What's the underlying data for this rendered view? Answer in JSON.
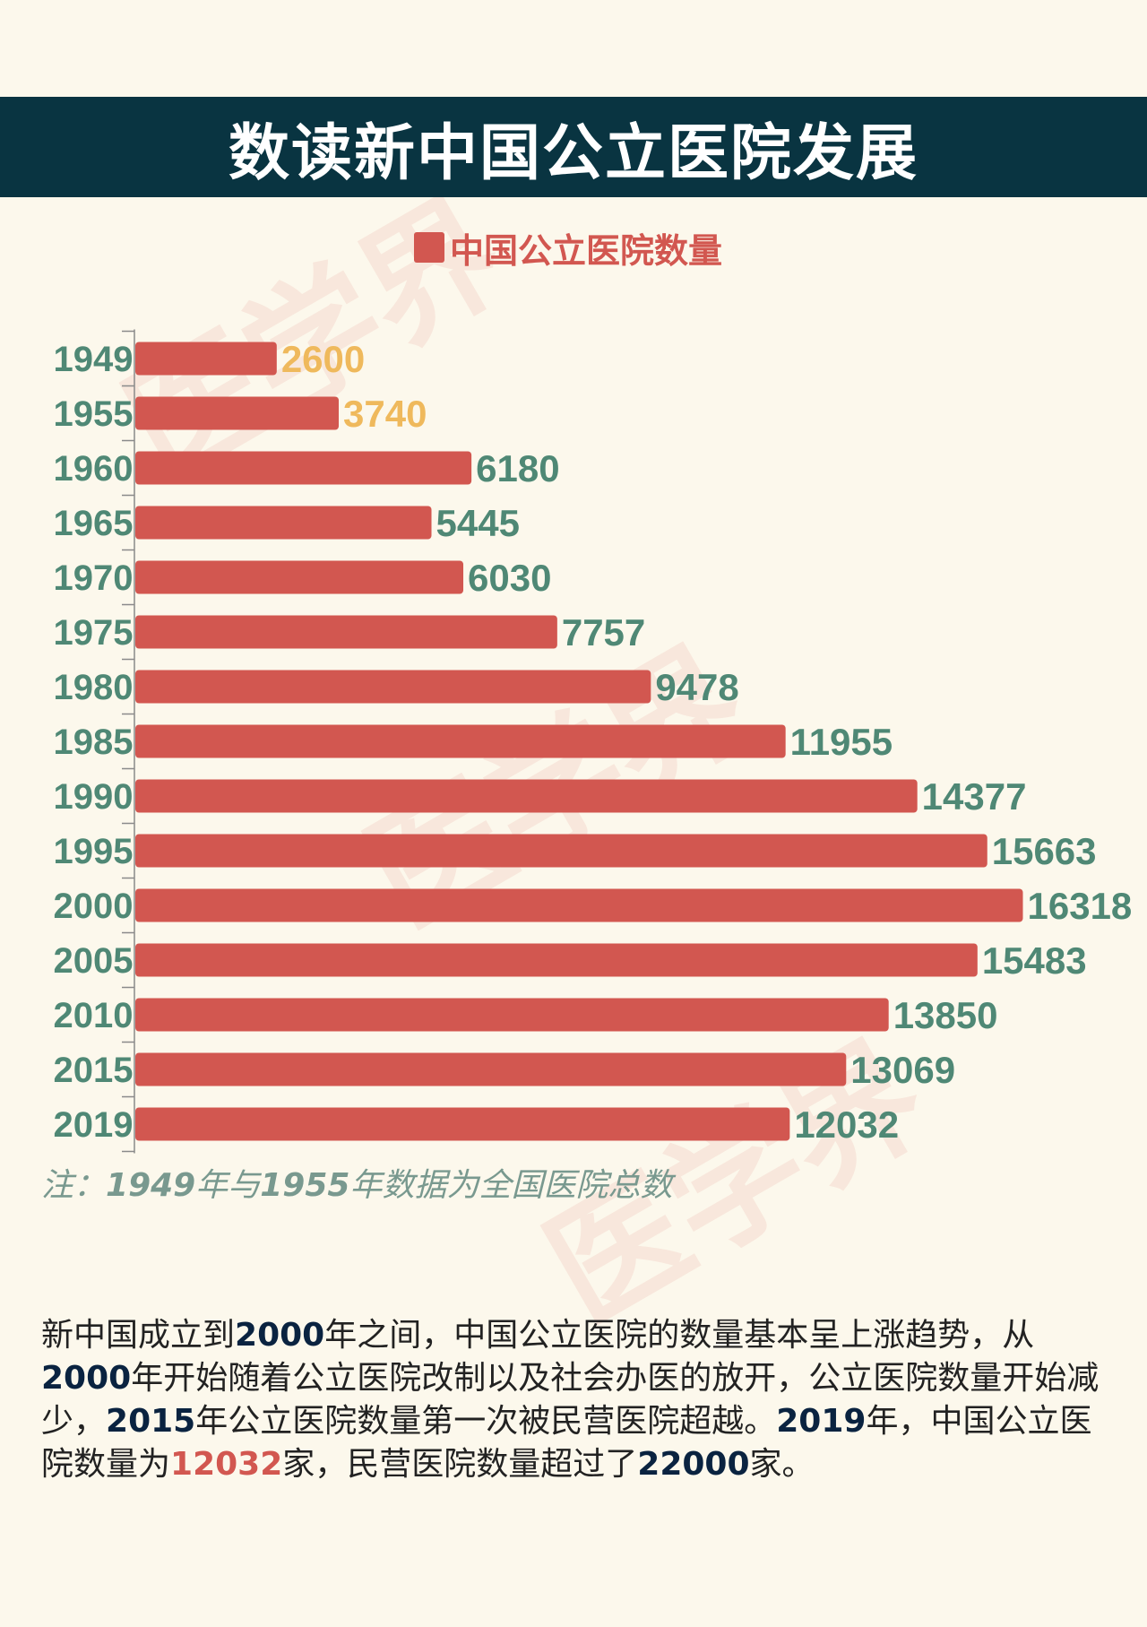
{
  "title": "数读新中国公立医院发展",
  "legend_label": "中国公立医院数量",
  "watermark": "医学界",
  "colors": {
    "banner": "#093441",
    "bar": "#d25750",
    "label_default": "#4f8875",
    "label_highlight": "#efb95c",
    "year_label": "#4f8875",
    "background": "#fcf8ec"
  },
  "chart_data": {
    "type": "bar",
    "orientation": "horizontal",
    "categories": [
      "1949",
      "1955",
      "1960",
      "1965",
      "1970",
      "1975",
      "1980",
      "1985",
      "1990",
      "1995",
      "2000",
      "2005",
      "2010",
      "2015",
      "2019"
    ],
    "values": [
      2600,
      3740,
      6180,
      5445,
      6030,
      7757,
      9478,
      11955,
      14377,
      15663,
      16318,
      15483,
      13850,
      13069,
      12032
    ],
    "data_labels": [
      "2600",
      "3740",
      "6180",
      "5445",
      "6030",
      "7757",
      "9478",
      "11955",
      "14377",
      "15663",
      "16318",
      "15483",
      "13850",
      "13069",
      "12032"
    ],
    "highlighted_categories": [
      "1949",
      "1955"
    ],
    "series": [
      {
        "name": "中国公立医院数量"
      }
    ],
    "legend_position": "top",
    "grid": false
  },
  "note": {
    "prefix": "注：",
    "year1": "1949",
    "mid": "年与",
    "year2": "1955",
    "suffix": "年数据为全国医院总数"
  },
  "summary": {
    "t1": "新中国成立到",
    "b1": "2000",
    "t2": "年之间，中国公立医院的数量基本呈上涨趋势，从",
    "b2": "2000",
    "t3": "年开始随着公立医院改制以及社会办医的放开，公立医院数量开始减少，",
    "b3": "2015",
    "t4": "年公立医院数量第一次被民营医院超越。",
    "b4": "2019",
    "t5": "年，中国公立医院数量为",
    "b5": "12032",
    "t6": "家，民营医院数量超过了",
    "b6": "22000",
    "t7": "家。"
  }
}
